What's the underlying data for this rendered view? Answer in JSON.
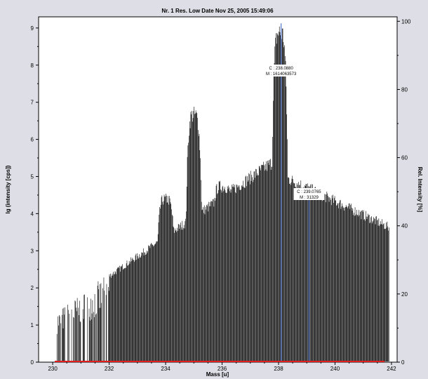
{
  "chart_data": {
    "type": "bar",
    "title": "Nr. 1   Res. Low   Date Nov 25, 2005 15:49:06",
    "xlabel": "Mass [u]",
    "ylabel": "lg (intensity [cps])",
    "ylabel_right": "Rel. Intensity [%]",
    "xlim": [
      229.5,
      242.2
    ],
    "ylim": [
      0,
      9.3
    ],
    "ylim_right": [
      0,
      101.3
    ],
    "x_ticks": [
      230,
      232,
      234,
      236,
      238,
      240,
      242
    ],
    "y_ticks": [
      0,
      1,
      2,
      3,
      4,
      5,
      6,
      7,
      8,
      9
    ],
    "y_ticks_right": [
      0,
      20,
      40,
      60,
      80,
      100
    ],
    "grid": false,
    "peaks": [
      {
        "x": 234.0,
        "y": 4.55
      },
      {
        "x": 235.0,
        "y": 6.9
      },
      {
        "x": 236.0,
        "y": 4.9
      },
      {
        "x": 238.05,
        "y": 9.2
      },
      {
        "x": 239.05,
        "y": 4.45
      }
    ],
    "markers": [
      {
        "x": 238.09,
        "label_c": "C : 238.0880",
        "label_m": "M : 1614063573"
      },
      {
        "x": 239.08,
        "label_c": "C : 239.0765",
        "label_m": "M : 31329"
      }
    ],
    "colors": {
      "bars": "#000000",
      "markers": "#5577cc",
      "baseline": "#e02020",
      "panel": "#ffffff"
    }
  }
}
